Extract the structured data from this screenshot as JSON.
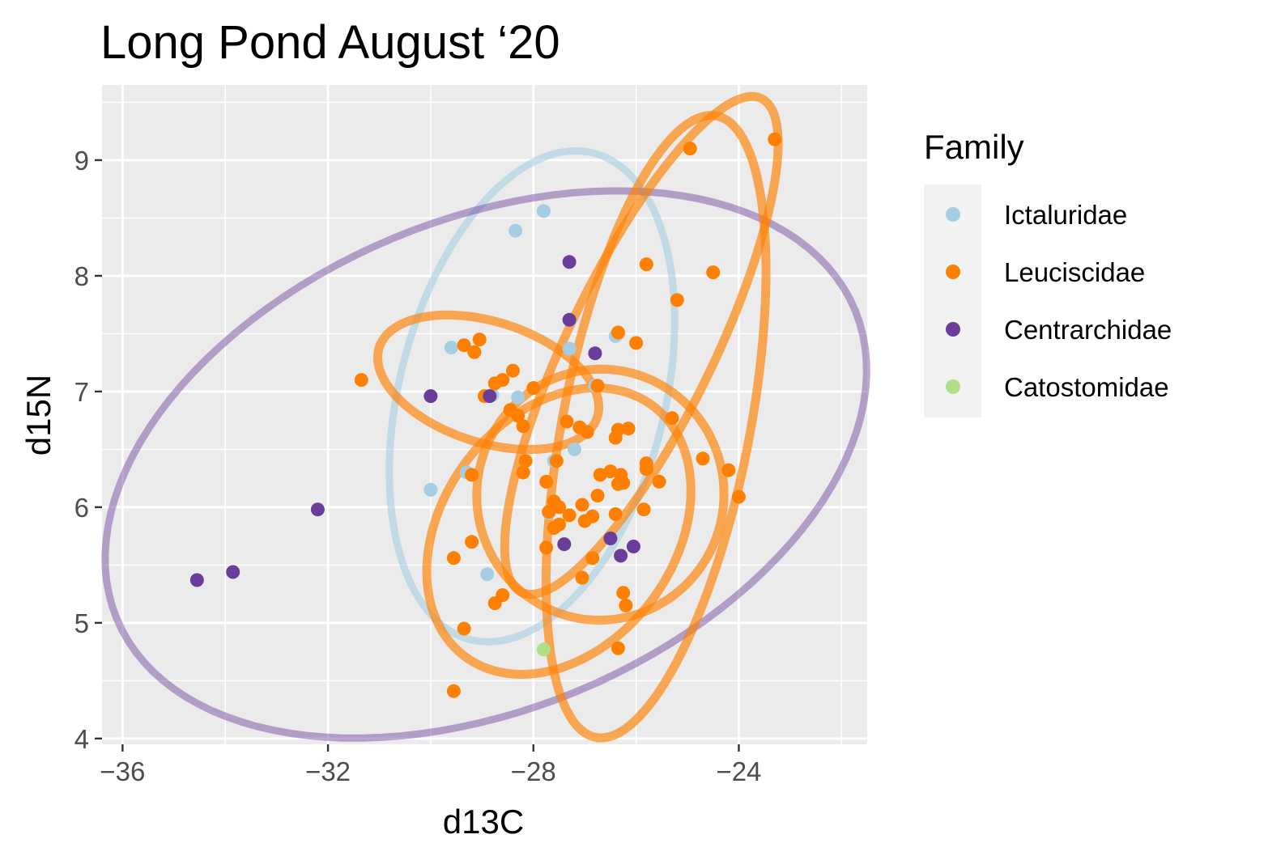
{
  "chart_data": {
    "type": "scatter",
    "title": "Long Pond August ‘20",
    "xlabel": "d13C",
    "ylabel": "d15N",
    "xlim": [
      -36.4,
      -21.5
    ],
    "ylim": [
      3.95,
      9.65
    ],
    "x_ticks": [
      -36,
      -32,
      -28,
      -24
    ],
    "x_tick_labels": [
      "−36",
      "−32",
      "−28",
      "−24"
    ],
    "y_ticks": [
      4,
      5,
      6,
      7,
      8,
      9
    ],
    "y_tick_labels": [
      "4",
      "5",
      "6",
      "7",
      "8",
      "9"
    ],
    "grid": true,
    "legend": {
      "title": "Family",
      "position": "right"
    },
    "series": [
      {
        "name": "Ictaluridae",
        "color": "#a6cee3",
        "points": [
          [
            -29.6,
            7.38
          ],
          [
            -28.35,
            8.39
          ],
          [
            -27.8,
            8.56
          ],
          [
            -30.0,
            6.15
          ],
          [
            -27.3,
            7.37
          ],
          [
            -26.35,
            7.5
          ],
          [
            -26.8,
            7.05
          ],
          [
            -27.6,
            6.4
          ],
          [
            -28.8,
            6.97
          ],
          [
            -27.2,
            6.5
          ],
          [
            -29.3,
            6.3
          ],
          [
            -27.7,
            5.95
          ],
          [
            -28.9,
            5.42
          ],
          [
            -26.4,
            7.48
          ],
          [
            -28.3,
            6.95
          ]
        ]
      },
      {
        "name": "Leuciscidae",
        "color": "#ff7f00",
        "points": [
          [
            -23.3,
            9.18
          ],
          [
            -24.95,
            9.1
          ],
          [
            -25.8,
            8.1
          ],
          [
            -24.5,
            8.03
          ],
          [
            -25.2,
            7.79
          ],
          [
            -26.35,
            7.51
          ],
          [
            -26.0,
            7.42
          ],
          [
            -29.05,
            7.45
          ],
          [
            -29.35,
            7.4
          ],
          [
            -29.15,
            7.34
          ],
          [
            -31.35,
            7.1
          ],
          [
            -28.6,
            7.1
          ],
          [
            -28.4,
            7.18
          ],
          [
            -28.75,
            7.07
          ],
          [
            -28.95,
            6.96
          ],
          [
            -28.0,
            7.03
          ],
          [
            -26.75,
            7.05
          ],
          [
            -28.45,
            6.84
          ],
          [
            -28.3,
            6.79
          ],
          [
            -28.2,
            6.7
          ],
          [
            -27.35,
            6.74
          ],
          [
            -27.1,
            6.69
          ],
          [
            -26.95,
            6.65
          ],
          [
            -26.35,
            6.67
          ],
          [
            -26.15,
            6.68
          ],
          [
            -26.4,
            6.6
          ],
          [
            -25.3,
            6.77
          ],
          [
            -28.15,
            6.4
          ],
          [
            -28.2,
            6.3
          ],
          [
            -29.2,
            6.28
          ],
          [
            -27.55,
            6.4
          ],
          [
            -26.5,
            6.31
          ],
          [
            -26.7,
            6.28
          ],
          [
            -26.3,
            6.28
          ],
          [
            -25.8,
            6.38
          ],
          [
            -25.8,
            6.33
          ],
          [
            -25.55,
            6.22
          ],
          [
            -24.7,
            6.42
          ],
          [
            -24.2,
            6.32
          ],
          [
            -24.0,
            6.09
          ],
          [
            -26.25,
            6.21
          ],
          [
            -26.35,
            6.2
          ],
          [
            -27.75,
            6.22
          ],
          [
            -26.75,
            6.1
          ],
          [
            -27.6,
            6.05
          ],
          [
            -27.5,
            6.0
          ],
          [
            -27.05,
            6.02
          ],
          [
            -27.7,
            5.96
          ],
          [
            -27.3,
            5.93
          ],
          [
            -27.0,
            5.88
          ],
          [
            -26.85,
            5.92
          ],
          [
            -26.4,
            5.94
          ],
          [
            -25.85,
            5.98
          ],
          [
            -27.5,
            5.85
          ],
          [
            -27.6,
            5.82
          ],
          [
            -29.2,
            5.7
          ],
          [
            -27.75,
            5.65
          ],
          [
            -26.85,
            5.56
          ],
          [
            -29.55,
            5.56
          ],
          [
            -27.05,
            5.39
          ],
          [
            -28.75,
            5.17
          ],
          [
            -28.6,
            5.24
          ],
          [
            -26.25,
            5.26
          ],
          [
            -26.2,
            5.15
          ],
          [
            -29.35,
            4.95
          ],
          [
            -26.35,
            4.78
          ],
          [
            -29.55,
            4.41
          ]
        ]
      },
      {
        "name": "Centrarchidae",
        "color": "#6a3d9a",
        "points": [
          [
            -27.3,
            8.12
          ],
          [
            -27.3,
            7.62
          ],
          [
            -26.8,
            7.33
          ],
          [
            -30.0,
            6.96
          ],
          [
            -28.85,
            6.96
          ],
          [
            -32.2,
            5.98
          ],
          [
            -26.5,
            5.73
          ],
          [
            -26.05,
            5.66
          ],
          [
            -27.4,
            5.68
          ],
          [
            -26.3,
            5.58
          ],
          [
            -33.85,
            5.44
          ],
          [
            -34.55,
            5.37
          ]
        ]
      },
      {
        "name": "Catostomidae",
        "color": "#b2df8a",
        "points": [
          [
            -27.8,
            4.77
          ]
        ]
      }
    ]
  }
}
